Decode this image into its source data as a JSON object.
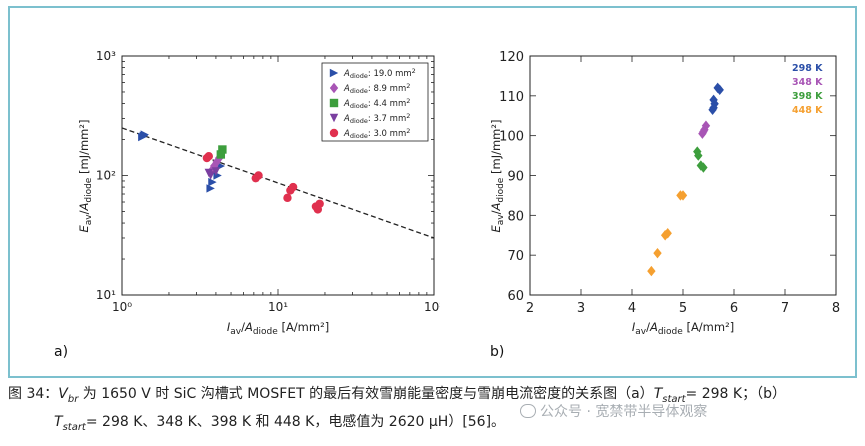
{
  "caption": {
    "prefix": "图 34：",
    "v_sym": "V",
    "v_sub": "br",
    "line1_a": " 为 1650 V 时 SiC 沟槽式 MOSFET 的最后有效雪崩能量密度与雪崩电流密度的关系图（a）",
    "t_sym": "T",
    "t_sub": "start",
    "line1_b": "= 298 K；（b）",
    "line2": "= 298 K、348 K、398 K 和 448 K，电感值为 2620 μH）[56]。"
  },
  "watermark": "公众号 · 宽禁带半导体观察",
  "panel_a_label": "a)",
  "panel_b_label": "b)",
  "chart_data": [
    {
      "type": "scatter",
      "panel": "a",
      "xscale": "log",
      "yscale": "log",
      "xlim": [
        1,
        100
      ],
      "ylim": [
        10,
        1000
      ],
      "x_ticks": [
        "10⁰",
        "10¹",
        "10²"
      ],
      "y_ticks": [
        "10¹",
        "10²",
        "10³"
      ],
      "xlabel": "Iav/Adiode [A/mm²]",
      "ylabel": "Eav/Adiode [mJ/mm²]",
      "legend_position": "top-right",
      "series": [
        {
          "name": "Adiode: 19.0 mm²",
          "color": "#2b4fa8",
          "marker": "triangle-right",
          "points": [
            [
              1.35,
              210
            ],
            [
              1.4,
              220
            ],
            [
              1.38,
              215
            ],
            [
              3.7,
              78
            ],
            [
              3.8,
              88
            ],
            [
              4.1,
              100
            ],
            [
              4.3,
              120
            ]
          ]
        },
        {
          "name": "Adiode: 8.9 mm²",
          "color": "#a855b5",
          "marker": "diamond",
          "points": [
            [
              3.9,
              120
            ],
            [
              4.05,
              130
            ],
            [
              4.2,
              140
            ],
            [
              3.8,
              112
            ]
          ]
        },
        {
          "name": "Adiode: 4.4 mm²",
          "color": "#3d9e3d",
          "marker": "square",
          "points": [
            [
              4.4,
              165
            ],
            [
              4.3,
              150
            ]
          ]
        },
        {
          "name": "Adiode: 3.7 mm²",
          "color": "#7a3fa0",
          "marker": "triangle-down",
          "points": [
            [
              3.6,
              105
            ],
            [
              3.7,
              100
            ],
            [
              4.0,
              108
            ]
          ]
        },
        {
          "name": "Adiode: 3.0 mm²",
          "color": "#e0304e",
          "marker": "circle",
          "points": [
            [
              3.5,
              140
            ],
            [
              3.6,
              145
            ],
            [
              7.2,
              95
            ],
            [
              7.5,
              100
            ],
            [
              11.5,
              65
            ],
            [
              12,
              75
            ],
            [
              12.5,
              80
            ],
            [
              17.5,
              55
            ],
            [
              18,
              52
            ],
            [
              18.5,
              58
            ]
          ]
        }
      ],
      "fit_line": {
        "style": "dashed",
        "color": "#222222",
        "from": [
          1,
          250
        ],
        "to": [
          100,
          30
        ]
      }
    },
    {
      "type": "scatter",
      "panel": "b",
      "xlim": [
        2,
        8
      ],
      "ylim": [
        60,
        120
      ],
      "x_ticks": [
        2,
        3,
        4,
        5,
        6,
        7,
        8
      ],
      "y_ticks": [
        60,
        70,
        80,
        90,
        100,
        110,
        120
      ],
      "xlabel": "Iav/Adiode [A/mm²]",
      "ylabel": "Eav/Adiode [mJ/mm²]",
      "legend_position": "top-right",
      "series": [
        {
          "name": "298 K",
          "color": "#2b4fa8",
          "marker": "diamond",
          "points": [
            [
              5.68,
              112
            ],
            [
              5.72,
              111.5
            ],
            [
              5.6,
              109
            ],
            [
              5.62,
              108
            ],
            [
              5.58,
              106.5
            ],
            [
              5.6,
              107
            ]
          ]
        },
        {
          "name": "348 K",
          "color": "#a855b5",
          "marker": "diamond",
          "points": [
            [
              5.45,
              102.5
            ],
            [
              5.4,
              101
            ],
            [
              5.38,
              100.5
            ],
            [
              5.42,
              101.5
            ]
          ]
        },
        {
          "name": "398 K",
          "color": "#3d9e3d",
          "marker": "diamond",
          "points": [
            [
              5.28,
              96
            ],
            [
              5.3,
              95
            ],
            [
              5.35,
              92.5
            ],
            [
              5.4,
              92
            ]
          ]
        },
        {
          "name": "448 K",
          "color": "#f5a030",
          "marker": "diamond",
          "points": [
            [
              4.95,
              85
            ],
            [
              5.0,
              85
            ],
            [
              4.7,
              75.5
            ],
            [
              4.65,
              75
            ],
            [
              4.5,
              70.5
            ],
            [
              4.38,
              66
            ]
          ]
        }
      ]
    }
  ]
}
